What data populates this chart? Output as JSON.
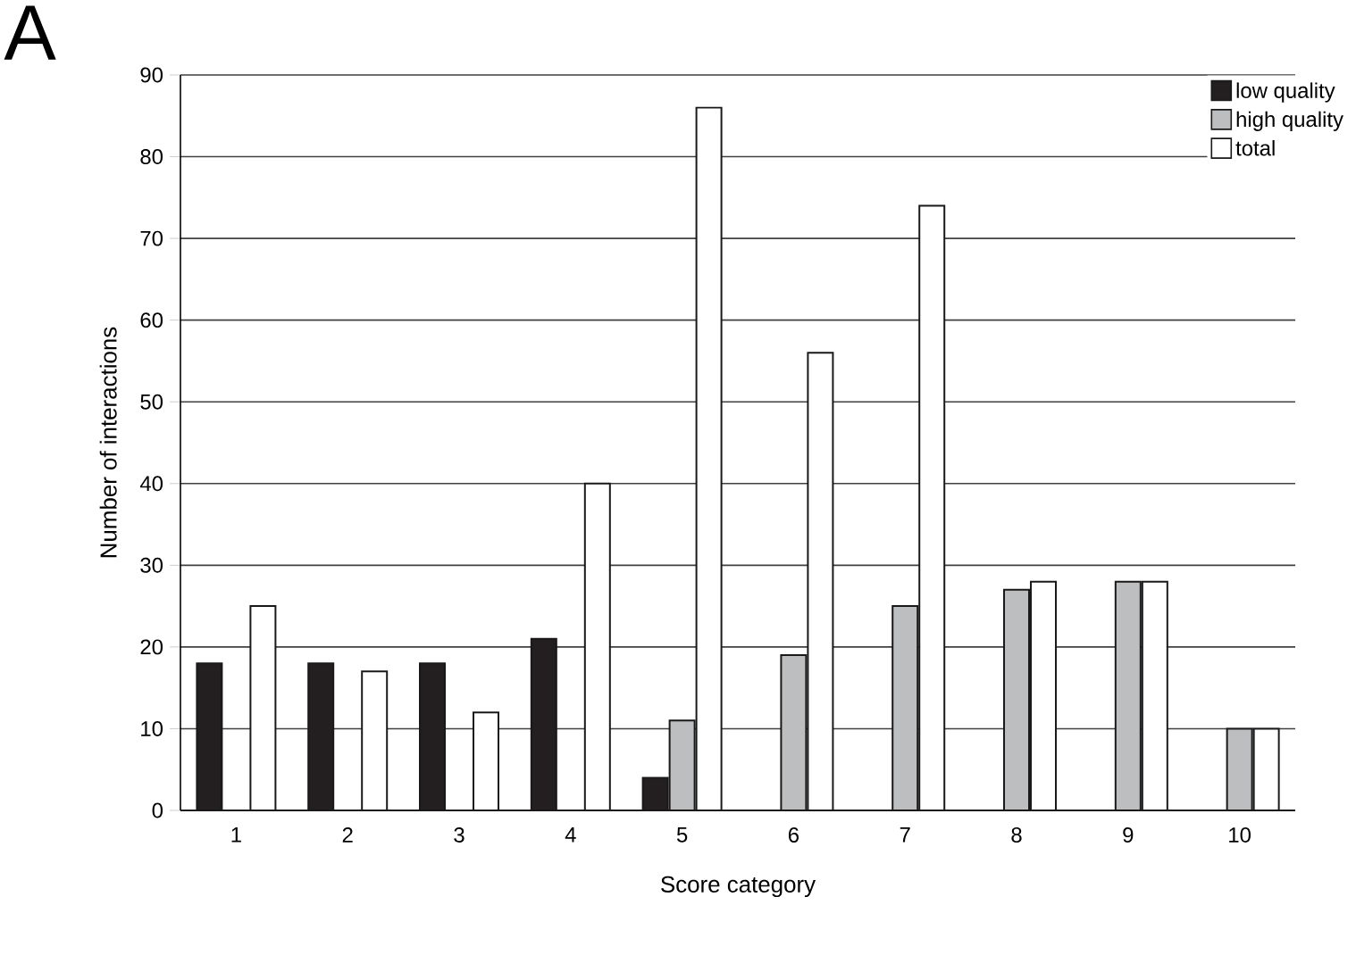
{
  "chart_data": {
    "type": "bar",
    "annotations": [
      "A"
    ],
    "xlabel": "Score category",
    "ylabel": "Number of interactions",
    "categories": [
      "1",
      "2",
      "3",
      "4",
      "5",
      "6",
      "7",
      "8",
      "9",
      "10"
    ],
    "series": [
      {
        "name": "low quality",
        "color": "#231f20",
        "values": [
          18,
          18,
          18,
          21,
          4,
          null,
          null,
          null,
          null,
          null
        ]
      },
      {
        "name": "high quality",
        "color": "#bcbec0",
        "values": [
          null,
          null,
          null,
          null,
          11,
          19,
          25,
          27,
          28,
          10
        ]
      },
      {
        "name": "total",
        "color": "#ffffff",
        "values": [
          25,
          17,
          12,
          40,
          86,
          56,
          74,
          28,
          28,
          10
        ]
      }
    ],
    "ylim": [
      0,
      90
    ],
    "yticks": [
      0,
      10,
      20,
      30,
      40,
      50,
      60,
      70,
      80,
      90
    ],
    "grid": "y",
    "legend": "top right"
  }
}
